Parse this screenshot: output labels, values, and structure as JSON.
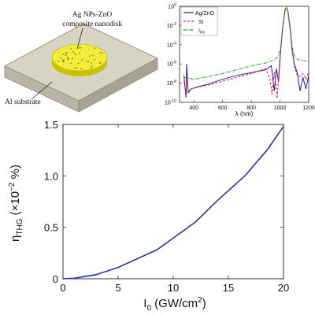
{
  "schematic": {
    "material_label_line1": "Ag NPs-ZnO",
    "material_label_line2": "composite nanodisk",
    "substrate_label": "Al substrate"
  },
  "chart_data": [
    {
      "id": "spectrum",
      "type": "line",
      "xlabel": "λ (nm)",
      "ylabel": "",
      "xlim": [
        300,
        1200
      ],
      "ylim_log10": [
        -10,
        0
      ],
      "yscale": "log",
      "x_ticks": [
        400,
        600,
        800,
        1000,
        1200
      ],
      "y_ticks": [
        {
          "exp": -10,
          "label": "10^-10"
        },
        {
          "exp": -8,
          "label": "10^-8"
        },
        {
          "exp": -6,
          "label": "10^-6"
        },
        {
          "exp": -4,
          "label": "10^-4"
        },
        {
          "exp": -2,
          "label": "10^-2"
        },
        {
          "exp": 0,
          "label": "10^0"
        }
      ],
      "legend_position": "top-left",
      "series": [
        {
          "name": "Ag/ZnO",
          "color": "#1a1aa8",
          "style": "solid",
          "points_log10": [
            [
              330,
              -7.2
            ],
            [
              345,
              -9.5
            ],
            [
              350,
              -6.0
            ],
            [
              360,
              -9.0
            ],
            [
              380,
              -8.6
            ],
            [
              420,
              -8.4
            ],
            [
              500,
              -8.1
            ],
            [
              600,
              -7.6
            ],
            [
              700,
              -7.2
            ],
            [
              800,
              -6.9
            ],
            [
              900,
              -6.6
            ],
            [
              940,
              -6.2
            ],
            [
              960,
              -8.8
            ],
            [
              975,
              -6.5
            ],
            [
              990,
              -7.8
            ],
            [
              1005,
              -4.5
            ],
            [
              1020,
              -2.0
            ],
            [
              1035,
              -0.4
            ],
            [
              1045,
              -0.1
            ],
            [
              1055,
              -0.5
            ],
            [
              1070,
              -2.2
            ],
            [
              1085,
              -4.6
            ],
            [
              1100,
              -6.0
            ],
            [
              1120,
              -6.9
            ],
            [
              1140,
              -8.8
            ],
            [
              1160,
              -7.4
            ],
            [
              1180,
              -8.6
            ],
            [
              1200,
              -7.2
            ]
          ]
        },
        {
          "name": "Si",
          "color": "#e0202a",
          "style": "dashed",
          "points_log10": [
            [
              330,
              -7.8
            ],
            [
              345,
              -9.0
            ],
            [
              350,
              -7.3
            ],
            [
              360,
              -8.8
            ],
            [
              400,
              -8.5
            ],
            [
              500,
              -8.2
            ],
            [
              600,
              -7.8
            ],
            [
              700,
              -7.4
            ],
            [
              800,
              -7.0
            ],
            [
              900,
              -6.5
            ],
            [
              930,
              -7.5
            ],
            [
              945,
              -9.2
            ],
            [
              960,
              -6.8
            ],
            [
              980,
              -9.6
            ],
            [
              1000,
              -5.2
            ],
            [
              1020,
              -2.1
            ],
            [
              1035,
              -0.5
            ],
            [
              1045,
              -0.15
            ],
            [
              1055,
              -0.6
            ],
            [
              1070,
              -2.4
            ],
            [
              1085,
              -4.7
            ],
            [
              1100,
              -6.2
            ],
            [
              1120,
              -7.2
            ],
            [
              1140,
              -7.3
            ],
            [
              1160,
              -7.0
            ],
            [
              1180,
              -7.6
            ],
            [
              1200,
              -6.8
            ]
          ]
        },
        {
          "name": "I_inc",
          "color": "#1f9a2a",
          "style": "dash-dot",
          "points_log10": [
            [
              330,
              -7.4
            ],
            [
              400,
              -7.6
            ],
            [
              500,
              -7.3
            ],
            [
              600,
              -7.0
            ],
            [
              700,
              -6.6
            ],
            [
              800,
              -6.2
            ],
            [
              900,
              -5.9
            ],
            [
              960,
              -5.6
            ],
            [
              990,
              -5.2
            ],
            [
              1005,
              -4.2
            ],
            [
              1020,
              -1.9
            ],
            [
              1035,
              -0.35
            ],
            [
              1045,
              -0.1
            ],
            [
              1055,
              -0.45
            ],
            [
              1070,
              -2.0
            ],
            [
              1085,
              -4.2
            ],
            [
              1100,
              -5.2
            ],
            [
              1120,
              -5.5
            ],
            [
              1140,
              -5.6
            ],
            [
              1160,
              -5.65
            ],
            [
              1200,
              -5.7
            ]
          ]
        }
      ]
    },
    {
      "id": "efficiency",
      "type": "line",
      "xlabel": "I_0 (GW/cm^2)",
      "ylabel": "η_THG (×10^-2 %)",
      "xlim": [
        0,
        20
      ],
      "ylim": [
        0,
        1.5
      ],
      "x_ticks": [
        0,
        5,
        10,
        15,
        20
      ],
      "y_ticks": [
        0,
        0.5,
        1,
        1.5
      ],
      "y_tick_labels": [
        "0",
        "0.5",
        "1.0",
        "1.5"
      ],
      "series": [
        {
          "name": "",
          "color": "#2c34a8",
          "x": [
            0,
            1,
            3,
            5,
            8.5,
            12,
            14,
            16.5,
            18.5,
            20
          ],
          "values": [
            0,
            0.005,
            0.04,
            0.11,
            0.28,
            0.55,
            0.76,
            1.0,
            1.25,
            1.48
          ]
        }
      ]
    }
  ]
}
